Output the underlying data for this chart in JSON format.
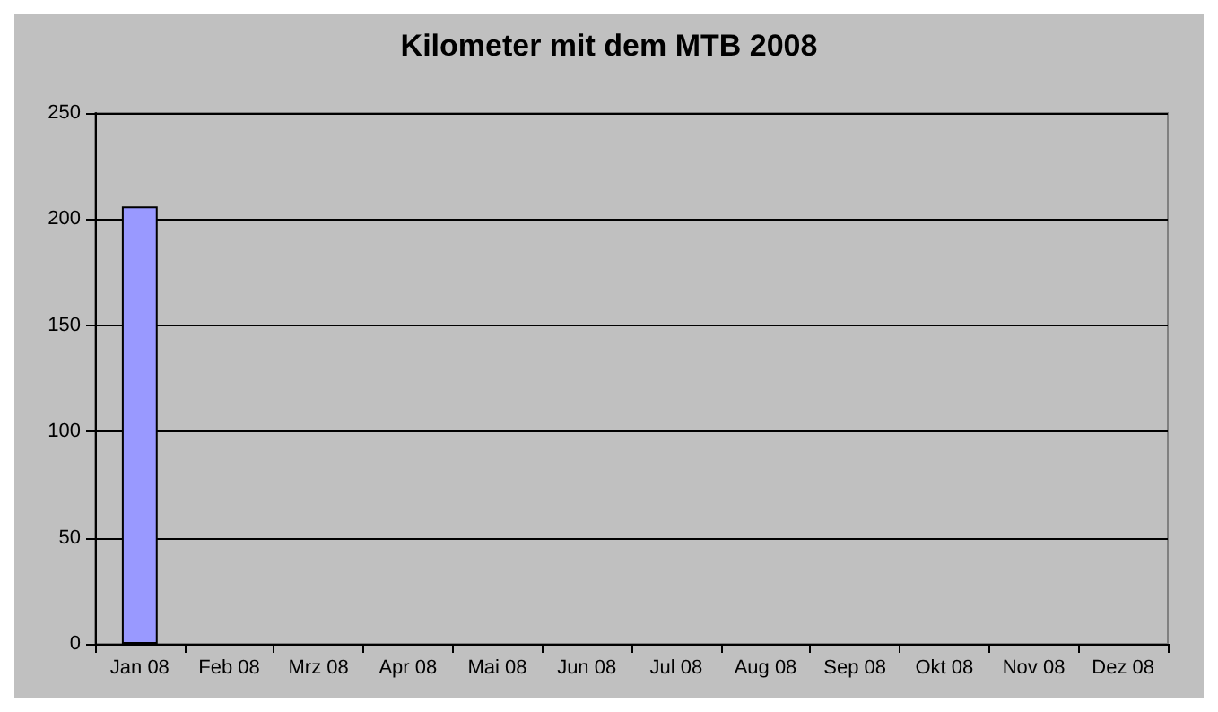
{
  "chart_data": {
    "type": "bar",
    "title": "Kilometer mit dem MTB 2008",
    "categories": [
      "Jan 08",
      "Feb 08",
      "Mrz 08",
      "Apr 08",
      "Mai 08",
      "Jun 08",
      "Jul 08",
      "Aug 08",
      "Sep 08",
      "Okt 08",
      "Nov 08",
      "Dez 08"
    ],
    "values": [
      206,
      null,
      null,
      null,
      null,
      null,
      null,
      null,
      null,
      null,
      null,
      null
    ],
    "color": "#9999ff",
    "ylim": [
      0,
      250
    ],
    "yticks": [
      0,
      50,
      100,
      150,
      200,
      250
    ],
    "grid": "y"
  }
}
